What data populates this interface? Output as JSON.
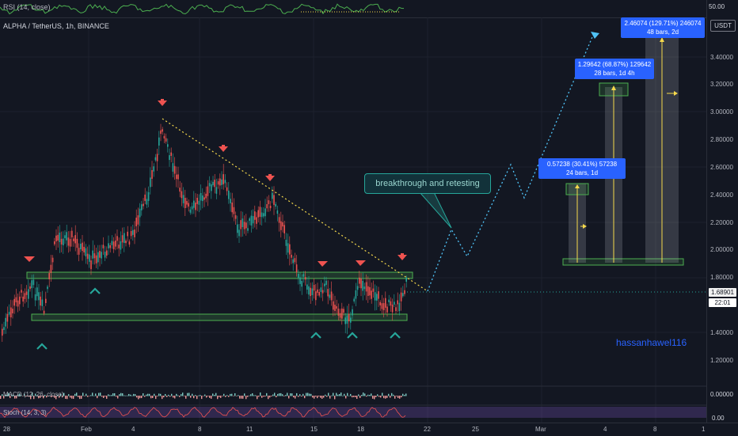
{
  "rsi": {
    "label": "RSI (14, close)",
    "level": "50.00"
  },
  "chart": {
    "title": "ALPHA / TetherUS, 1h, BINANCE",
    "currency": "USDT"
  },
  "price_axis": {
    "ticks": [
      "3.40000",
      "3.20000",
      "3.00000",
      "2.80000",
      "2.60000",
      "2.40000",
      "2.20000",
      "2.00000",
      "1.80000",
      "1.60000",
      "1.40000",
      "1.20000"
    ]
  },
  "last_price": {
    "value": "1.68901",
    "countdown": "22:01"
  },
  "time_axis": {
    "ticks": [
      "28",
      "Feb",
      "4",
      "8",
      "11",
      "15",
      "18",
      "22",
      "25",
      "Mar",
      "4",
      "8",
      "1"
    ]
  },
  "annotation": {
    "text": "breakthrough and retesting"
  },
  "measurements": [
    {
      "line1": "0.57238 (30.41%) 57238",
      "line2": "24 bars, 1d"
    },
    {
      "line1": "1.29642 (68.87%) 129642",
      "line2": "28 bars, 1d 4h"
    },
    {
      "line1": "2.46074 (129.71%) 246074",
      "line2": "48 bars, 2d"
    }
  ],
  "watermark": "hassanhawel116",
  "macd": {
    "label": "MACD (12, 26, close)",
    "value": "0.00000"
  },
  "stoch": {
    "label": "Stoch (14, 3, 3)",
    "value": "0.00"
  },
  "colors": {
    "up": "#26a69a",
    "down": "#ef5350",
    "trend": "#f5d94c",
    "projection": "#4fc3f7",
    "zone": "#4caf50",
    "measure": "#2962ff"
  }
}
